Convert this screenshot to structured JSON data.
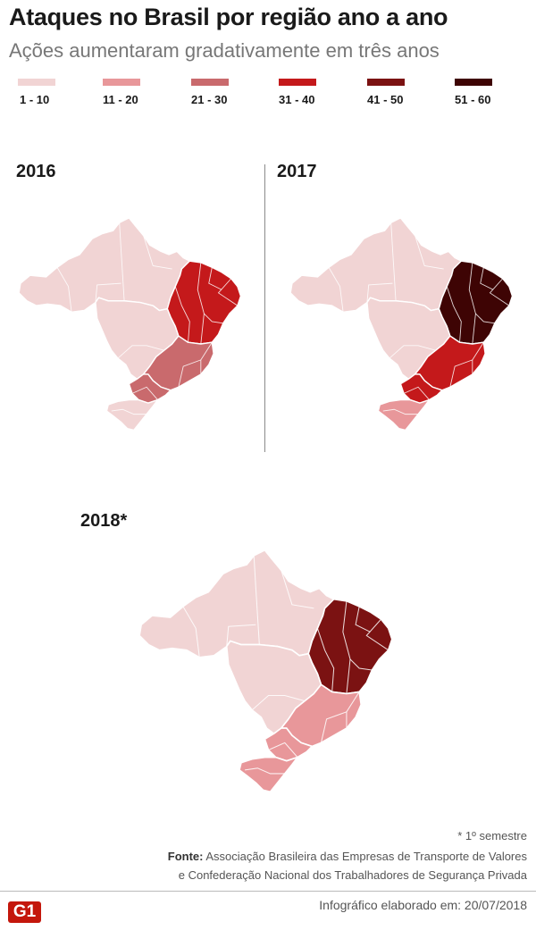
{
  "header": {
    "title": "Ataques no Brasil por região ano a ano",
    "subtitle": "Ações aumentaram gradativamente em três anos"
  },
  "legend": [
    {
      "label": "1 - 10",
      "color": "#f1d4d4"
    },
    {
      "label": "11 - 20",
      "color": "#e8979a"
    },
    {
      "label": "21 - 30",
      "color": "#c96a6d"
    },
    {
      "label": "31 - 40",
      "color": "#c4191b"
    },
    {
      "label": "41 - 50",
      "color": "#7b1212"
    },
    {
      "label": "51 - 60",
      "color": "#3e0404"
    }
  ],
  "maps": [
    {
      "year": "2016",
      "regions": {
        "norte": "1 - 10",
        "nordeste": "31 - 40",
        "centro_oeste": "1 - 10",
        "sudeste": "21 - 30",
        "sul_pr": "21 - 30",
        "sul_sc_rs": "1 - 10"
      }
    },
    {
      "year": "2017",
      "regions": {
        "norte": "1 - 10",
        "nordeste": "51 - 60",
        "centro_oeste": "1 - 10",
        "sudeste": "31 - 40",
        "sul_pr": "31 - 40",
        "sul_sc_rs": "11 - 20"
      }
    },
    {
      "year": "2018*",
      "regions": {
        "norte": "1 - 10",
        "nordeste": "41 - 50",
        "centro_oeste": "1 - 10",
        "sudeste": "11 - 20",
        "sul_pr": "11 - 20",
        "sul_sc_rs": "11 - 20"
      }
    }
  ],
  "footnote": "* 1º semestre",
  "source": {
    "label": "Fonte:",
    "line1": "Associação Brasileira das Empresas de Transporte de Valores",
    "line2": "e Confederação Nacional dos Trabalhadores de Segurança Privada"
  },
  "footer": {
    "logo": "G1",
    "credit": "Infográfico elaborado em: 20/07/2018"
  }
}
